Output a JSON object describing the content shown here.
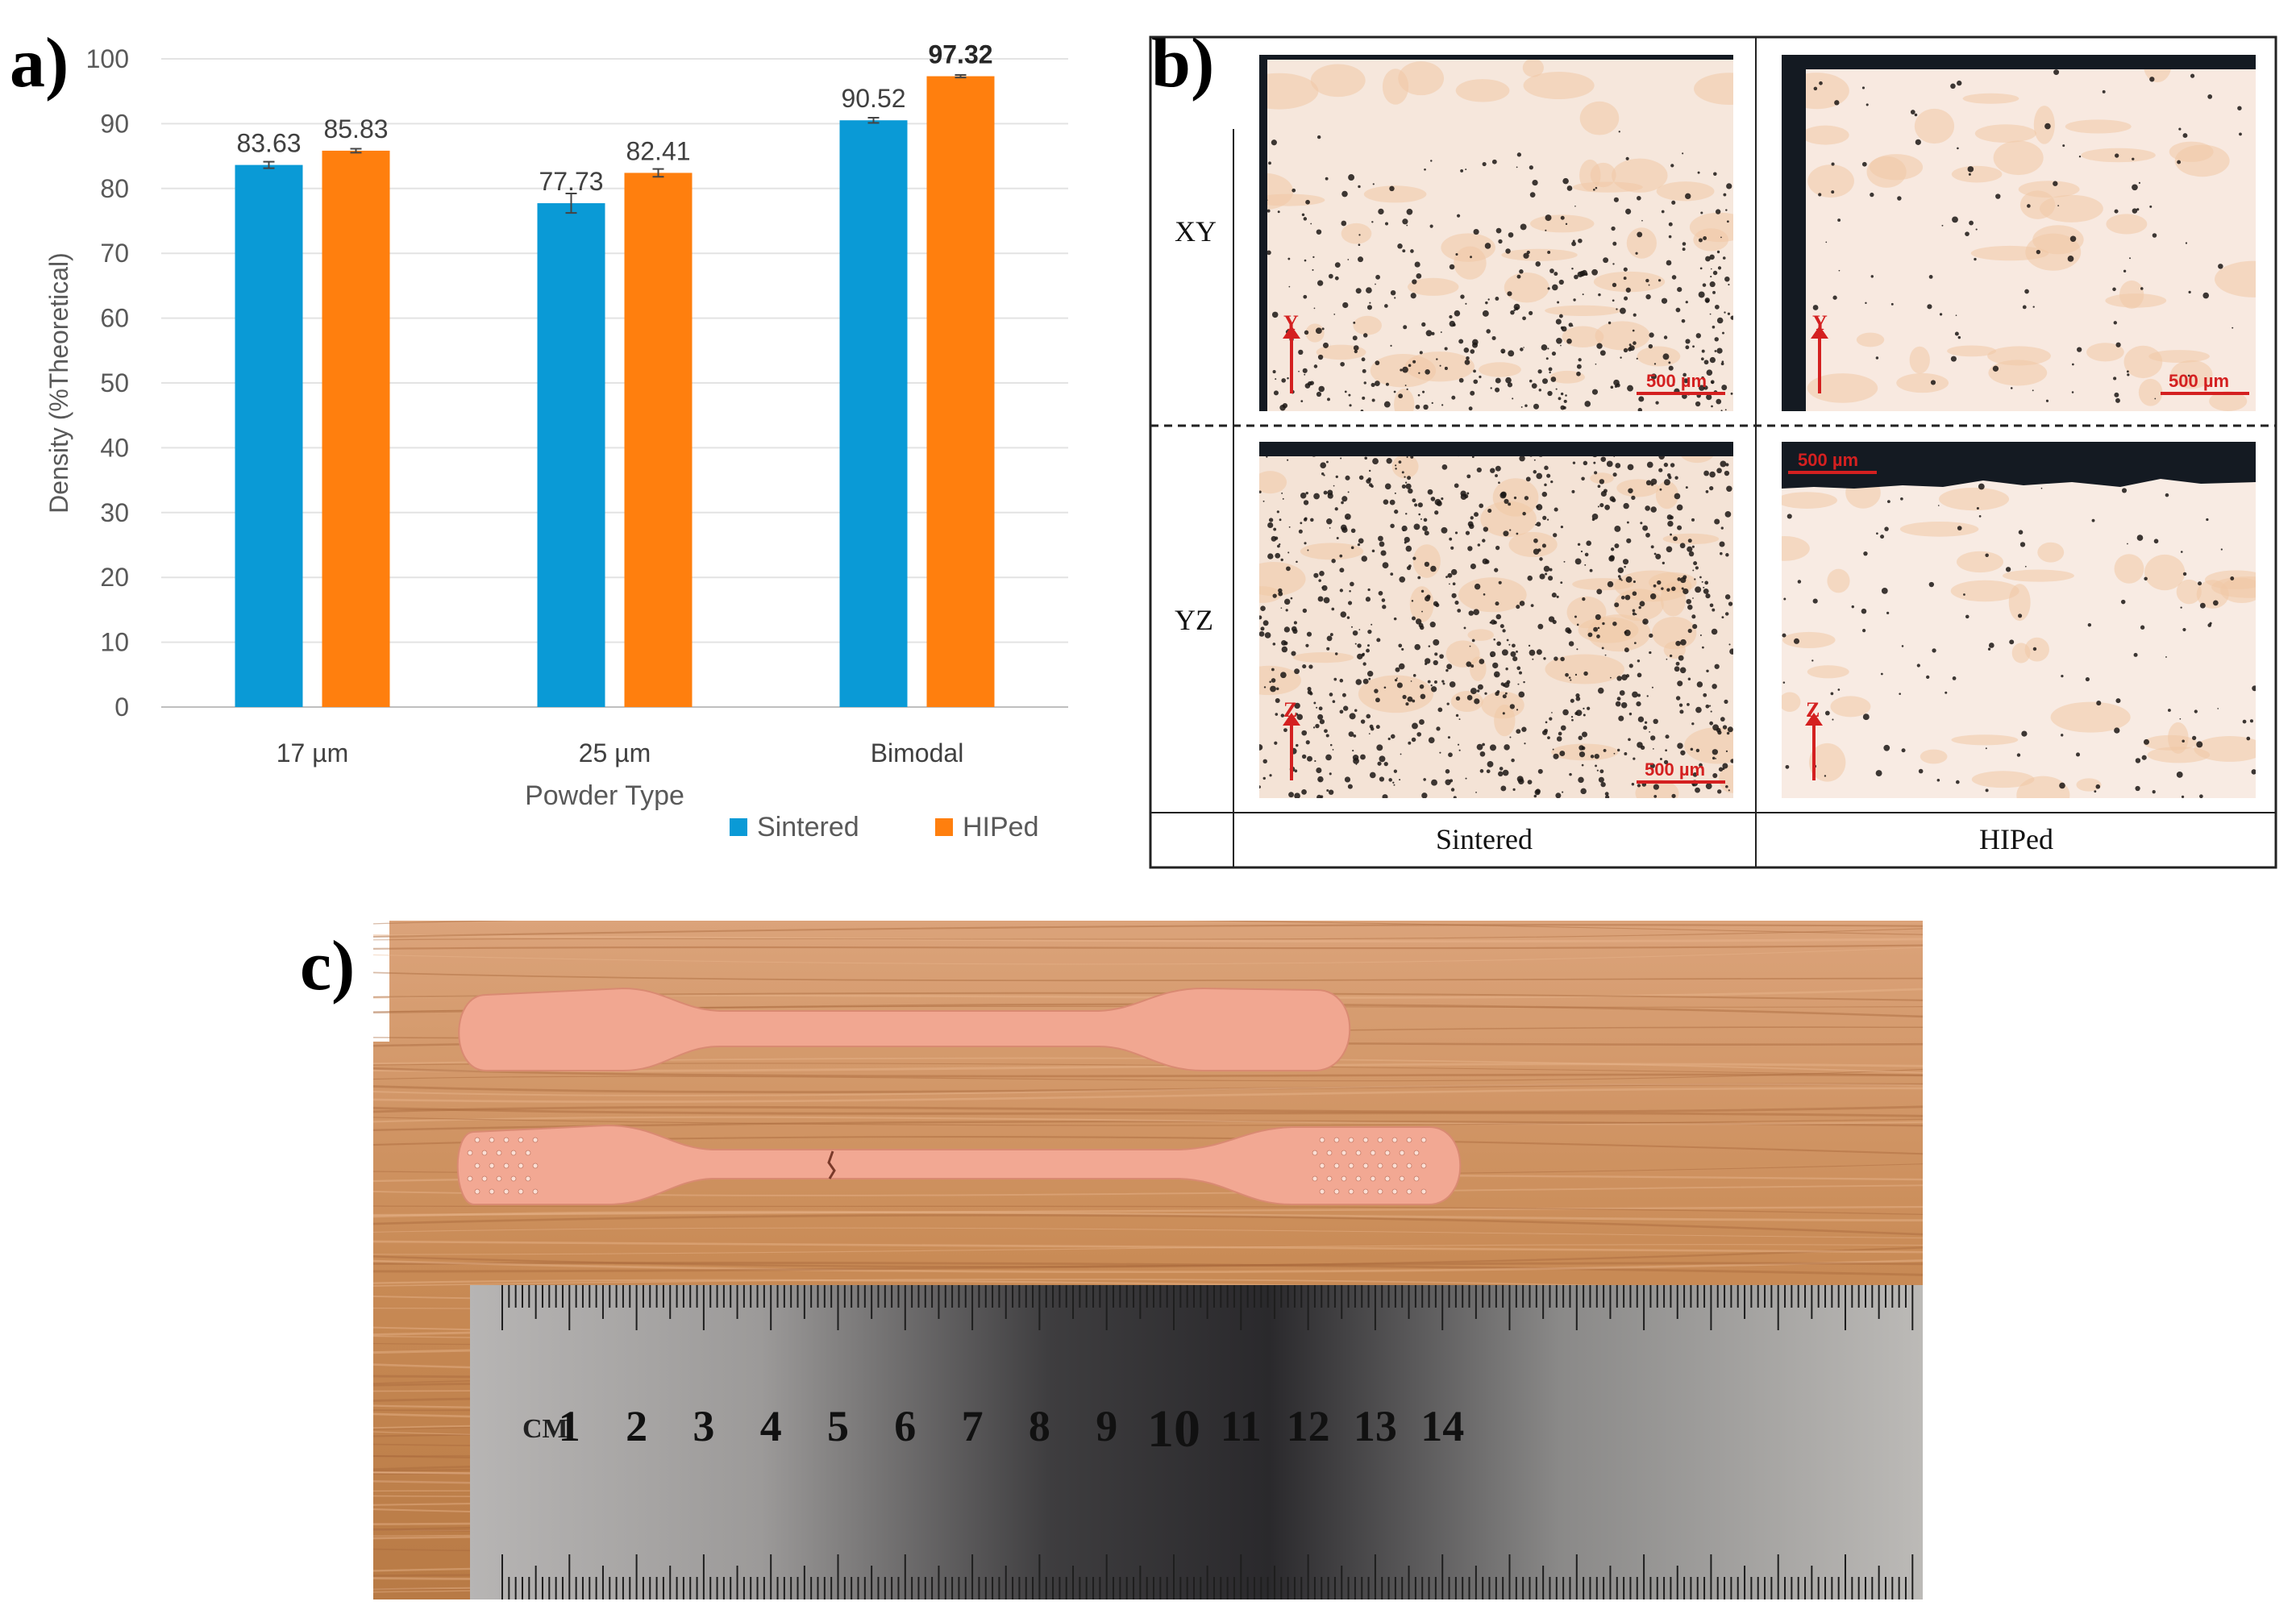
{
  "panel_labels": {
    "a": "a)",
    "b": "b)",
    "c": "c)"
  },
  "chart_data": {
    "type": "bar",
    "categories": [
      "17 µm",
      "25 µm",
      "Bimodal"
    ],
    "series": [
      {
        "name": "Sintered",
        "color": "#0a9ad6",
        "values": [
          83.63,
          77.73,
          90.52
        ],
        "errors": [
          0.5,
          1.5,
          0.4
        ]
      },
      {
        "name": "HIPed",
        "color": "#ff7f0e",
        "values": [
          85.83,
          82.41,
          97.32
        ],
        "errors": [
          0.3,
          0.6,
          0.2
        ]
      }
    ],
    "data_labels": [
      [
        "83.63",
        "77.73",
        "90.52"
      ],
      [
        "85.83",
        "82.41",
        "97.32"
      ]
    ],
    "xlabel": "Powder Type",
    "ylabel": "Density (%Theoretical)",
    "ylim": [
      0,
      100
    ],
    "yticks": [
      0,
      10,
      20,
      30,
      40,
      50,
      60,
      70,
      80,
      90,
      100
    ],
    "grid": true,
    "legend_position": "bottom"
  },
  "micrographs": {
    "rows": [
      "XY",
      "YZ"
    ],
    "columns": [
      "Sintered",
      "HIPed"
    ],
    "scale_label": "500 µm",
    "axis_letters": [
      "Y",
      "Y",
      "Z",
      "Z"
    ]
  },
  "ruler": {
    "unit": "CM",
    "numbers": [
      "1",
      "2",
      "3",
      "4",
      "5",
      "6",
      "7",
      "8",
      "9",
      "10",
      "11",
      "12",
      "13",
      "14"
    ]
  }
}
